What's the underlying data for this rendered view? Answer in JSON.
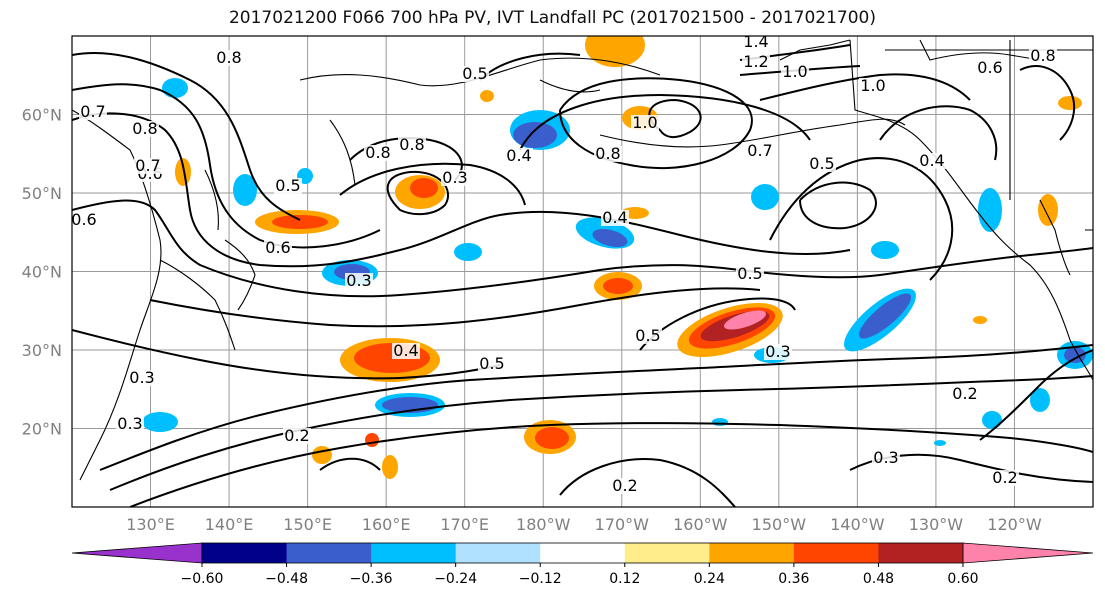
{
  "title": "2017021200 F066 700 hPa PV, IVT Landfall PC (2017021500 - 2017021700)",
  "map": {
    "lon_range": [
      120,
      250
    ],
    "lat_range": [
      10,
      70
    ],
    "lat_labels": [
      "20°N",
      "30°N",
      "40°N",
      "50°N",
      "60°N"
    ],
    "lat_values": [
      20,
      30,
      40,
      50,
      60
    ],
    "lon_labels": [
      "130°E",
      "140°E",
      "150°E",
      "160°E",
      "170°E",
      "180°W",
      "170°W",
      "160°W",
      "150°W",
      "140°W",
      "130°W",
      "120°W"
    ],
    "lon_values": [
      130,
      140,
      150,
      160,
      170,
      180,
      190,
      200,
      210,
      220,
      230,
      240
    ],
    "contour_labels": [
      "0.8",
      "1.4",
      "1.2",
      "1.0",
      "0.6",
      "0.7",
      "0.8",
      "0.5",
      "0.6",
      "0.4",
      "0.8",
      "0.8",
      "1.0",
      "0.8",
      "0.7",
      "0.4",
      "1.0",
      "0.3",
      "0.6",
      "0.4",
      "0.5",
      "0.8",
      "0.5",
      "0.7",
      "0.3",
      "0.6",
      "0.5",
      "0.3",
      "0.5",
      "0.4",
      "0.5",
      "0.3",
      "0.3",
      "0.2",
      "0.2",
      "0.2",
      "0.3",
      "0.2"
    ]
  },
  "colorbar": {
    "ticks": [
      "−0.60",
      "−0.48",
      "−0.36",
      "−0.24",
      "−0.12",
      "0.12",
      "0.24",
      "0.36",
      "0.48",
      "0.60"
    ],
    "colors": [
      "#9932cc",
      "#00008b",
      "#3a5fcd",
      "#00bfff",
      "#b0e2ff",
      "#ffffff",
      "#ffec8b",
      "#ffa500",
      "#ff4500",
      "#b22222",
      "#ff82ab"
    ]
  }
}
